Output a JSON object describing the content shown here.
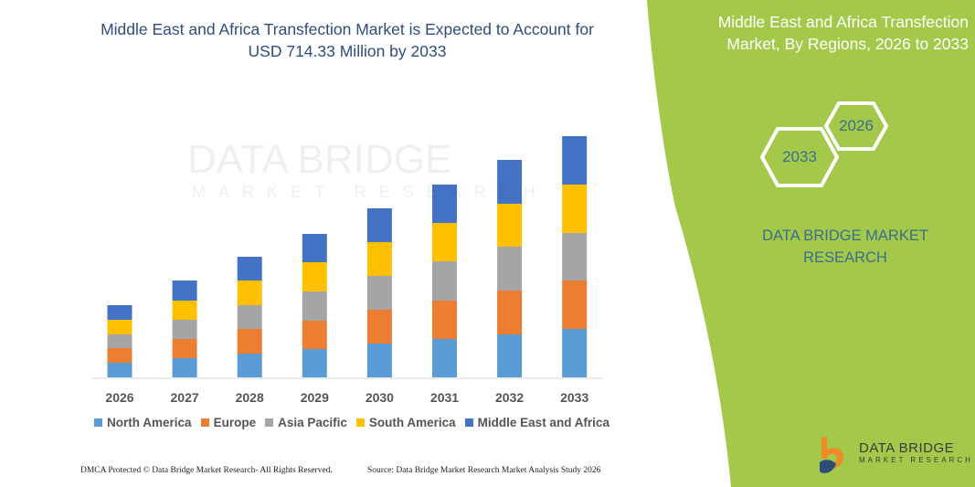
{
  "title": "Middle East and Africa Transfection Market is Expected to Account for USD 714.33 Million by 2033",
  "side_panel": {
    "title": "Middle East and Africa Transfection Market, By Regions, 2026 to 2033",
    "hex_start": "2026",
    "hex_end": "2033",
    "brand": "DATA BRIDGE MARKET RESEARCH",
    "panel_color": "#a3c84a"
  },
  "footer": {
    "left": "DMCA Protected © Data Bridge Market Research- All Rights Reserved.",
    "right": "Source: Data Bridge Market Research Market Analysis Study 2026"
  },
  "logo": {
    "line1": "DATA BRIDGE",
    "line2": "MARKET RESEARCH"
  },
  "watermark": {
    "line1": "DATA BRIDGE",
    "line2": "MARKET RESEARCH"
  },
  "chart_data": {
    "type": "bar",
    "stacked": true,
    "title": "Middle East and Africa Transfection Market is Expected to Account for USD 714.33 Million by 2033",
    "xlabel": "",
    "ylabel": "",
    "y_axis_shown": false,
    "grid": false,
    "legend_position": "bottom",
    "categories": [
      "2026",
      "2027",
      "2028",
      "2029",
      "2030",
      "2031",
      "2032",
      "2033"
    ],
    "series": [
      {
        "name": "North America",
        "color": "#5b9bd5",
        "values": [
          16,
          21,
          26,
          31,
          37,
          42,
          47,
          53
        ]
      },
      {
        "name": "Europe",
        "color": "#ed7d31",
        "values": [
          16,
          21,
          27,
          31,
          37,
          42,
          48,
          53
        ]
      },
      {
        "name": "Asia Pacific",
        "color": "#a5a5a5",
        "values": [
          15,
          21,
          26,
          32,
          37,
          43,
          48,
          52
        ]
      },
      {
        "name": "South America",
        "color": "#ffc000",
        "values": [
          16,
          21,
          27,
          32,
          37,
          42,
          47,
          53
        ]
      },
      {
        "name": "Middle East and Africa",
        "color": "#4472c4",
        "values": [
          16,
          22,
          26,
          31,
          37,
          42,
          48,
          53
        ]
      }
    ]
  }
}
